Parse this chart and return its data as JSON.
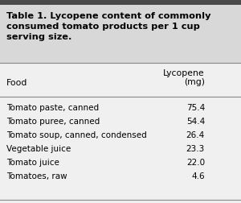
{
  "title_line1": "Table 1. Lycopene content of commonly",
  "title_line2": "consumed tomato products per 1 cup",
  "title_line3": "serving size.",
  "col_header_food": "Food",
  "col_header_lycopene": "Lycopene\n(mg)",
  "rows": [
    [
      "Tomato paste, canned",
      "75.4"
    ],
    [
      "Tomato puree, canned",
      "54.4"
    ],
    [
      "Tomato soup, canned, condensed",
      "26.4"
    ],
    [
      "Vegetable juice",
      "23.3"
    ],
    [
      "Tomato juice",
      "22.0"
    ],
    [
      "Tomatoes, raw",
      "4.6"
    ]
  ],
  "top_bar_color": "#4a4a4a",
  "title_bg_color": "#d8d8d8",
  "body_bg_color": "#f0f0f0",
  "line_color": "#888888",
  "title_text_color": "#000000",
  "body_text_color": "#000000",
  "title_fontsize": 8.2,
  "header_fontsize": 7.8,
  "body_fontsize": 7.5
}
